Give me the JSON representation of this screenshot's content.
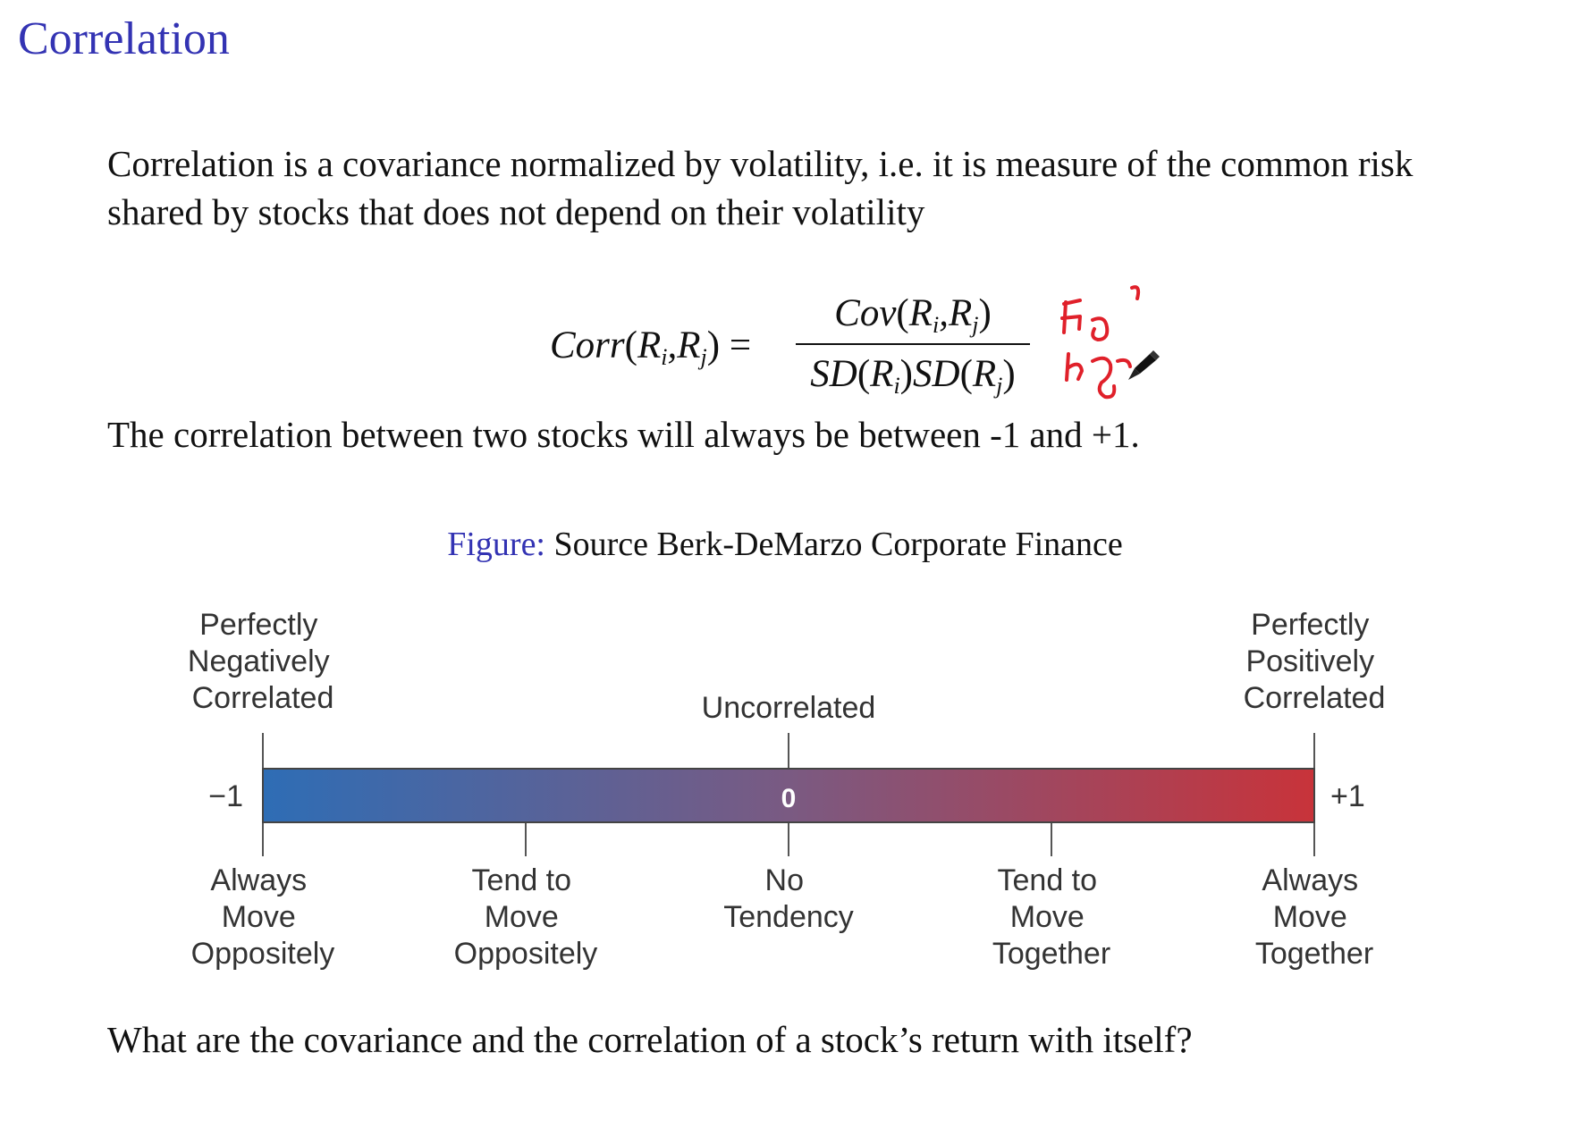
{
  "title": "Correlation",
  "intro": "Correlation is a covariance normalized by volatility, i.e. it is measure of the common risk shared by stocks that does not depend on their volatility",
  "formula": {
    "lhs_func": "Corr",
    "lhs_args": "(R_i, R_j)",
    "equals": "=",
    "numerator": "Cov(R_i, R_j)",
    "denominator": "SD(R_i)SD(R_j)"
  },
  "range_statement": "The correlation between two stocks will always be between -1 and +1.",
  "figure_caption": {
    "label": "Figure:",
    "text": "Source Berk-DeMarzo Corporate Finance"
  },
  "scale": {
    "min_label": "−1",
    "mid_label": "0",
    "max_label": "+1",
    "top_labels": [
      [
        "Perfectly",
        "Negatively",
        "Correlated"
      ],
      [
        "Uncorrelated"
      ],
      [
        "Perfectly",
        "Positively",
        "Correlated"
      ]
    ],
    "bottom_labels": [
      [
        "Always",
        "Move",
        "Oppositely"
      ],
      [
        "Tend to",
        "Move",
        "Oppositely"
      ],
      [
        "No",
        "Tendency"
      ],
      [
        "Tend to",
        "Move",
        "Together"
      ],
      [
        "Always",
        "Move",
        "Together"
      ]
    ],
    "colors": {
      "negative": "#2e6db5",
      "neutral": "#7a5a82",
      "positive": "#c8333a"
    }
  },
  "question": "What are the covariance and the correlation of a stock’s return with itself?",
  "annotation": {
    "color": "#e0202a"
  }
}
